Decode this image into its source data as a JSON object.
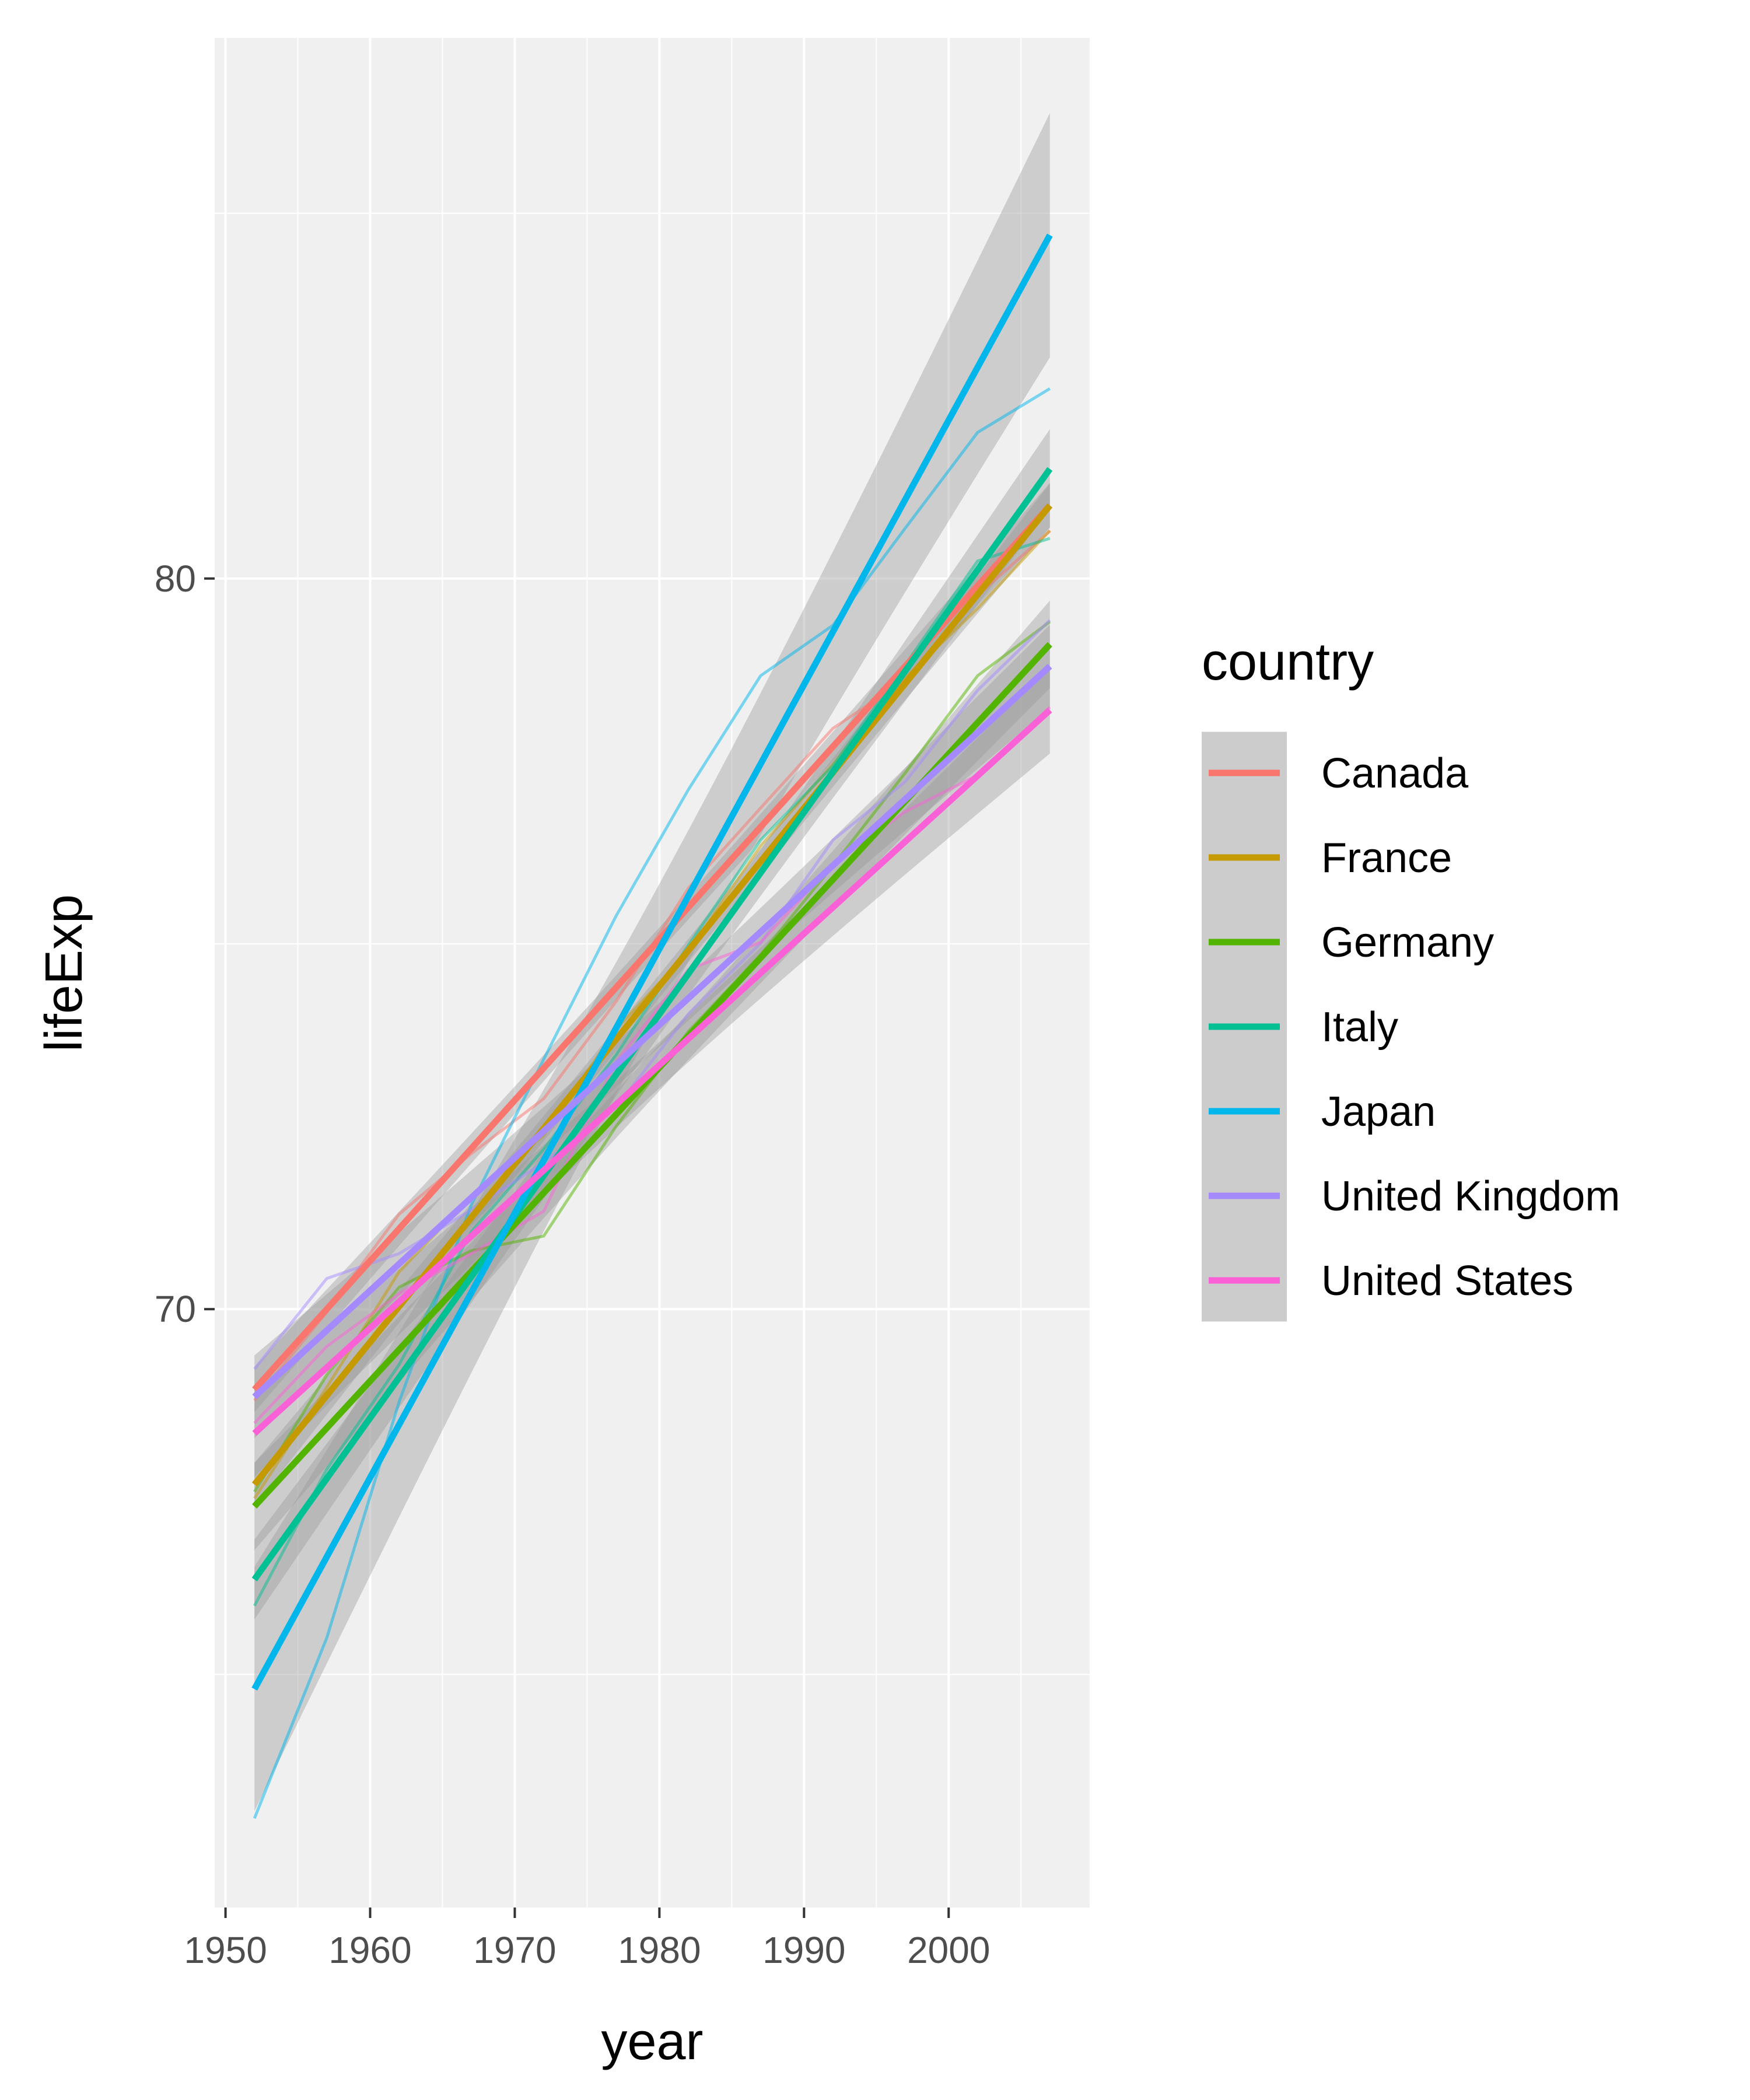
{
  "chart_data": {
    "type": "line",
    "xlabel": "year",
    "ylabel": "lifeExp",
    "xlim": [
      1949.25,
      2009.75
    ],
    "ylim": [
      61.81,
      87.4
    ],
    "x_ticks": [
      1950,
      1960,
      1970,
      1980,
      1990,
      2000
    ],
    "y_ticks": [
      70,
      80
    ],
    "grid": true,
    "legend": {
      "title": "country",
      "placement": "right"
    },
    "x": [
      1952,
      1957,
      1962,
      1967,
      1972,
      1977,
      1982,
      1987,
      1992,
      1997,
      2002,
      2007
    ],
    "series": [
      {
        "name": "Canada",
        "color": "#F8766D",
        "values": [
          68.75,
          69.96,
          71.3,
          72.13,
          72.88,
          74.21,
          75.76,
          76.86,
          77.95,
          78.61,
          79.77,
          80.65
        ],
        "fit": [
          68.9,
          81.0
        ]
      },
      {
        "name": "France",
        "color": "#C49A00",
        "values": [
          67.41,
          68.93,
          70.51,
          71.55,
          72.38,
          73.83,
          74.89,
          76.34,
          77.46,
          78.64,
          79.59,
          80.66
        ],
        "fit": [
          67.6,
          81.0
        ]
      },
      {
        "name": "Germany",
        "color": "#53B400",
        "values": [
          67.5,
          69.1,
          70.3,
          70.8,
          71.0,
          72.5,
          73.8,
          74.85,
          76.07,
          77.34,
          78.67,
          79.41
        ],
        "fit": [
          67.3,
          79.1
        ]
      },
      {
        "name": "Italy",
        "color": "#00C094",
        "values": [
          65.94,
          67.81,
          69.24,
          71.06,
          72.19,
          73.48,
          74.98,
          76.42,
          77.44,
          78.82,
          80.24,
          80.55
        ],
        "fit": [
          66.3,
          81.5
        ]
      },
      {
        "name": "Japan",
        "color": "#00B6EB",
        "values": [
          63.03,
          65.5,
          68.73,
          71.43,
          73.42,
          75.38,
          77.11,
          78.67,
          79.36,
          80.69,
          82.0,
          82.6
        ],
        "fit": [
          64.8,
          84.7
        ]
      },
      {
        "name": "United Kingdom",
        "color": "#A58AFF",
        "values": [
          69.18,
          70.42,
          70.76,
          71.36,
          72.01,
          72.76,
          74.04,
          75.01,
          76.42,
          77.22,
          78.47,
          79.43
        ],
        "fit": [
          68.8,
          78.8
        ]
      },
      {
        "name": "United States",
        "color": "#FB61D7",
        "values": [
          68.44,
          69.49,
          70.21,
          70.76,
          71.34,
          73.38,
          74.65,
          75.02,
          76.09,
          76.81,
          77.31,
          78.24
        ],
        "fit": [
          68.3,
          78.2
        ]
      }
    ]
  }
}
